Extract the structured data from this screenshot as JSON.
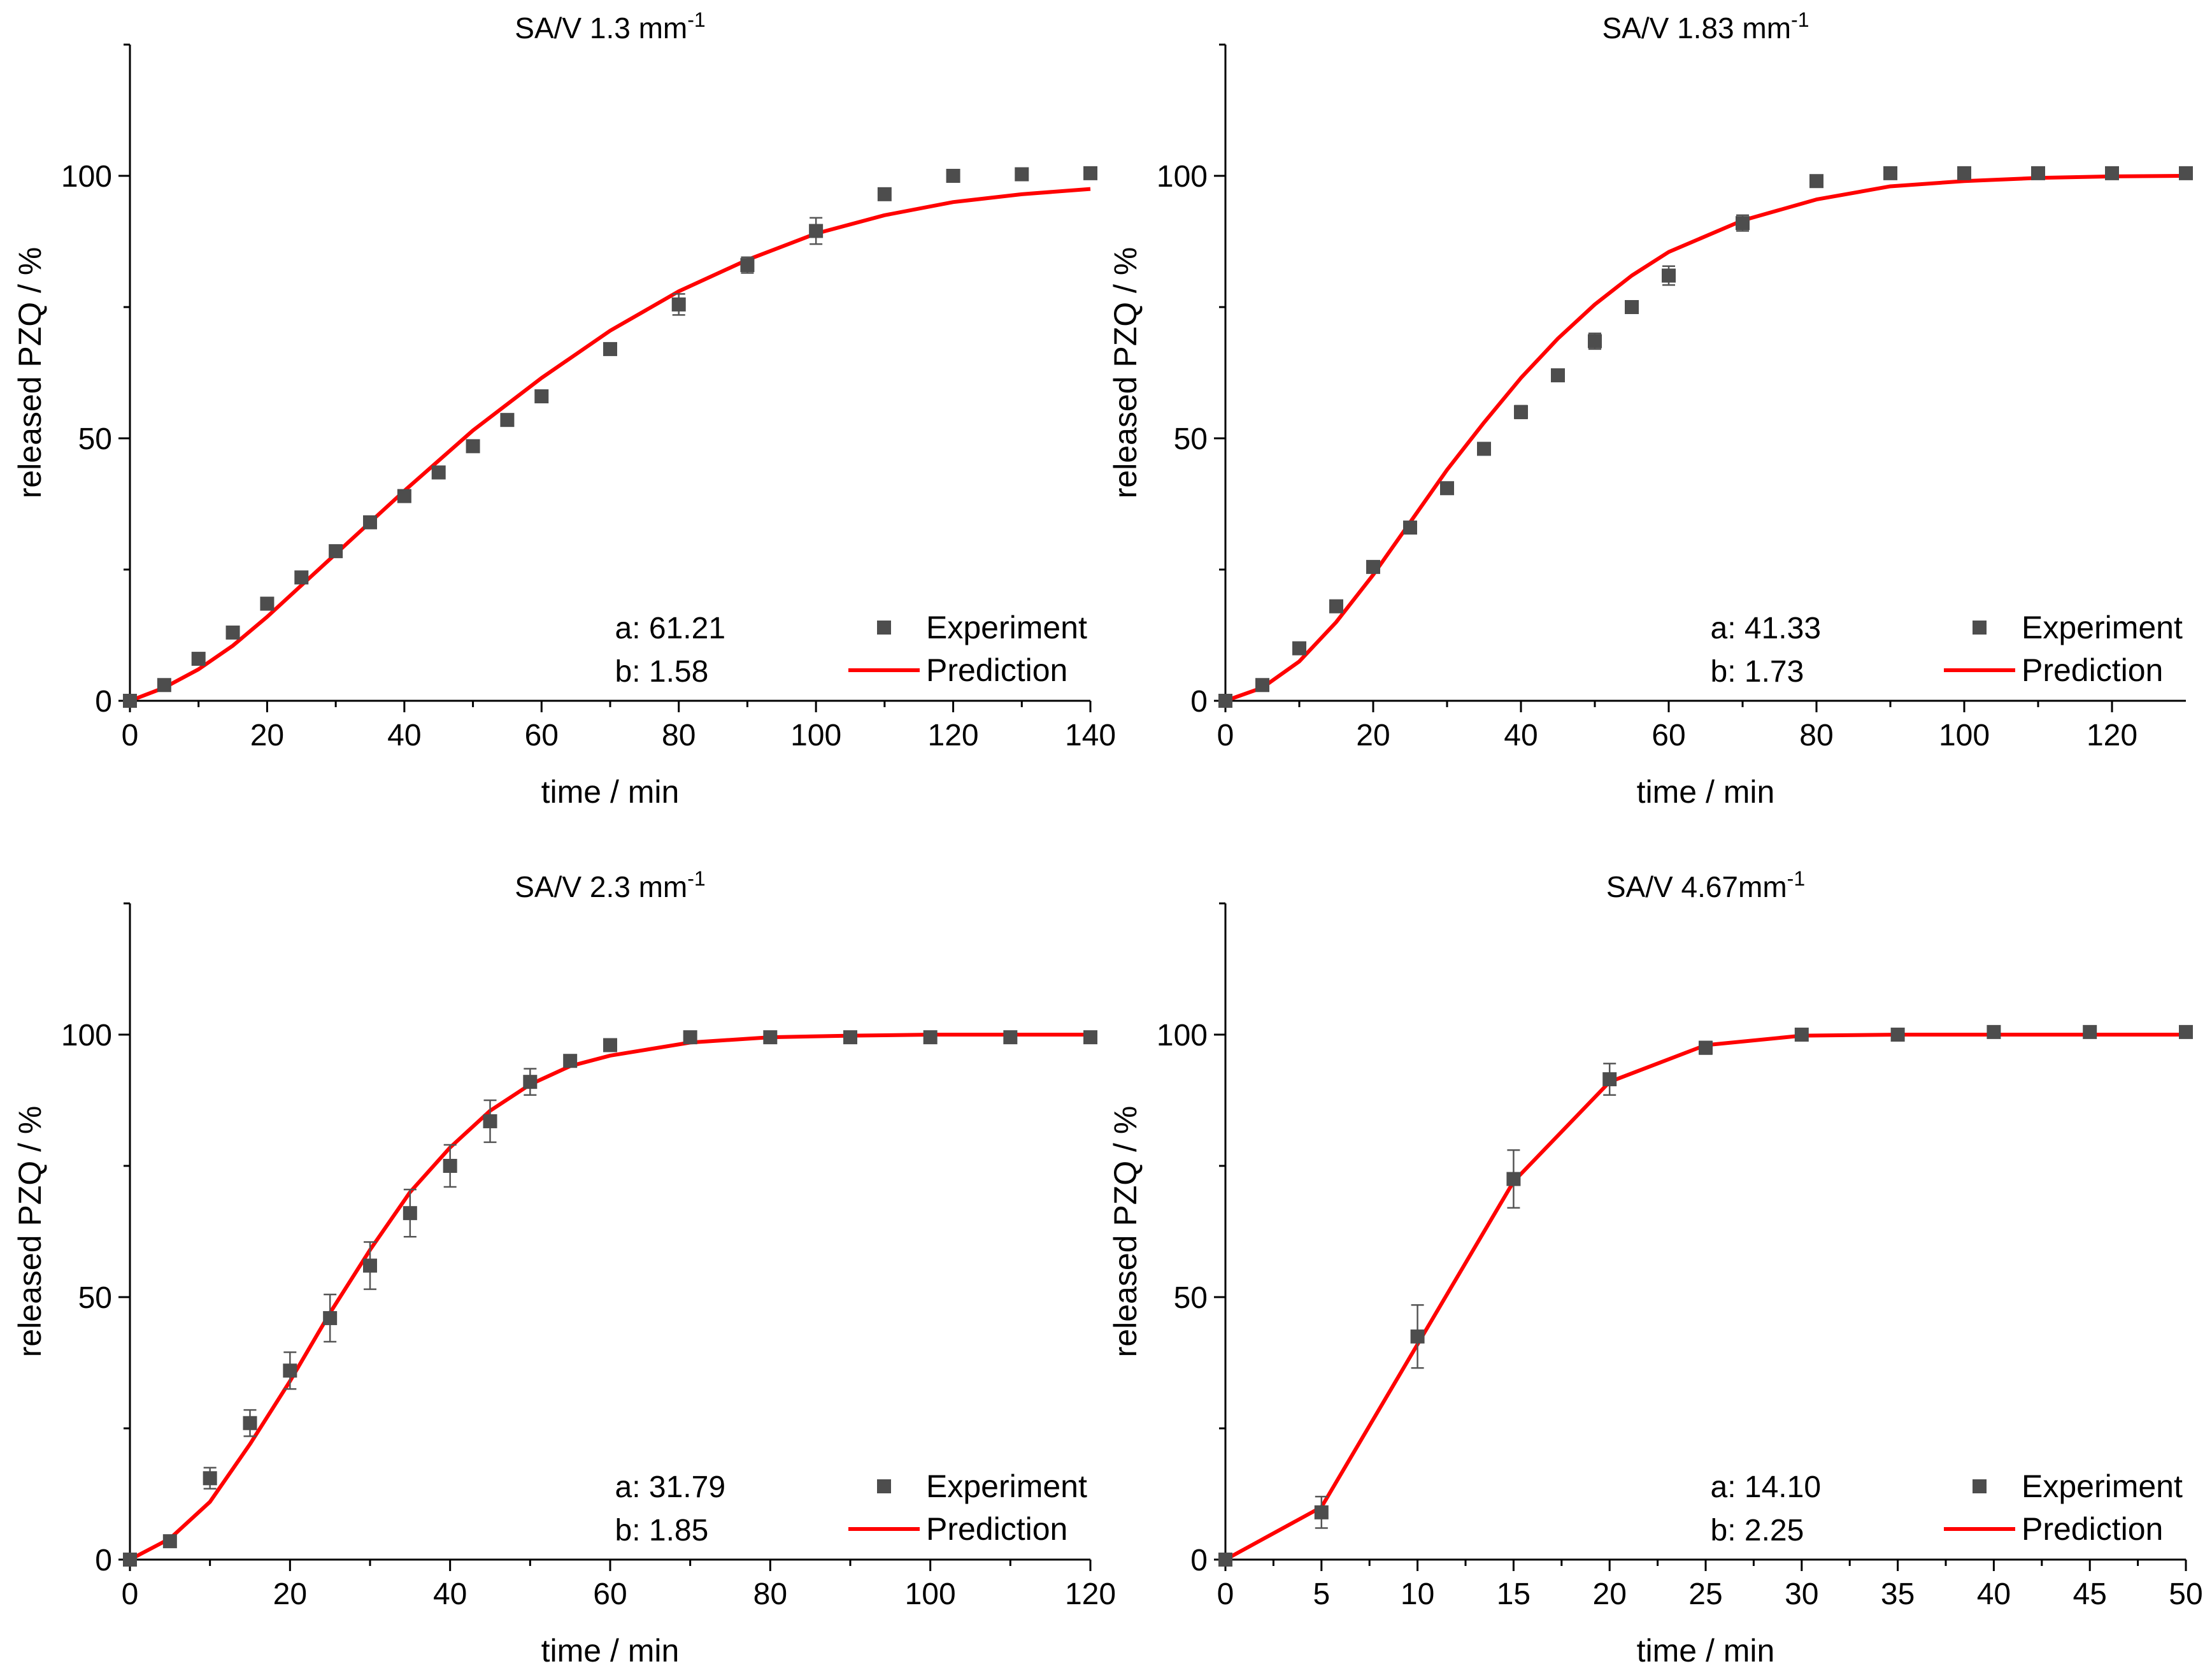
{
  "colors": {
    "experiment": "#4d4d4d",
    "prediction": "#ff0000",
    "axis": "#000000"
  },
  "chart_data": [
    {
      "type": "scatter",
      "title": {
        "main": "SA/V 1.3 mm",
        "sup": "-1"
      },
      "xlabel": "time / min",
      "ylabel": "released PZQ / %",
      "xlim": [
        0,
        140
      ],
      "ylim": [
        0,
        125
      ],
      "xticks": [
        0,
        20,
        40,
        60,
        80,
        100,
        120,
        140
      ],
      "yticks": [
        0,
        50,
        100
      ],
      "legend": {
        "position": "bottom-right",
        "entries": [
          "Experiment",
          "Prediction"
        ]
      },
      "annotation": {
        "a": "a: 61.21",
        "b": "b: 1.58"
      },
      "series": [
        {
          "name": "Experiment",
          "marker": "square",
          "x": [
            0,
            5,
            10,
            15,
            20,
            25,
            30,
            35,
            40,
            45,
            50,
            55,
            60,
            70,
            80,
            90,
            100,
            110,
            120,
            130,
            140
          ],
          "y": [
            0,
            3,
            8,
            13,
            18.5,
            23.5,
            28.5,
            34,
            39,
            43.5,
            48.5,
            53.5,
            58,
            67,
            75.5,
            83,
            89.5,
            96.5,
            100,
            100.3,
            100.5
          ],
          "err": [
            0,
            0.4,
            0.5,
            0.5,
            0.5,
            0.5,
            0.6,
            0.6,
            0.8,
            0.8,
            0.8,
            0.8,
            1,
            1,
            2,
            1.5,
            2.5,
            0.5,
            0.5,
            0.5,
            0.5
          ]
        },
        {
          "name": "Prediction",
          "line": true,
          "x": [
            0,
            5,
            10,
            15,
            20,
            25,
            30,
            35,
            40,
            50,
            60,
            70,
            80,
            90,
            100,
            110,
            120,
            130,
            140
          ],
          "y": [
            0,
            2.5,
            6,
            10.5,
            16,
            22,
            28,
            34,
            40,
            51.5,
            61.5,
            70.5,
            78,
            84,
            89,
            92.5,
            95,
            96.5,
            97.5
          ]
        }
      ]
    },
    {
      "type": "scatter",
      "title": {
        "main": "SA/V 1.83 mm",
        "sup": "-1"
      },
      "xlabel": "time / min",
      "ylabel": "released PZQ / %",
      "xlim": [
        0,
        130
      ],
      "ylim": [
        0,
        125
      ],
      "xticks": [
        0,
        20,
        40,
        60,
        80,
        100,
        120
      ],
      "yticks": [
        0,
        50,
        100
      ],
      "legend": {
        "position": "bottom-right",
        "entries": [
          "Experiment",
          "Prediction"
        ]
      },
      "annotation": {
        "a": "a: 41.33",
        "b": "b: 1.73"
      },
      "series": [
        {
          "name": "Experiment",
          "marker": "square",
          "x": [
            0,
            5,
            10,
            15,
            20,
            25,
            30,
            35,
            40,
            45,
            50,
            55,
            60,
            70,
            80,
            90,
            100,
            110,
            120,
            130
          ],
          "y": [
            0,
            3,
            10,
            18,
            25.5,
            33,
            40.5,
            48,
            55,
            62,
            68.5,
            75,
            81,
            91,
            99,
            100.5,
            100.5,
            100.5,
            100.5,
            100.5
          ],
          "err": [
            0,
            0.4,
            0.5,
            0.5,
            0.6,
            0.8,
            0.6,
            0.6,
            1.2,
            0.6,
            1.5,
            0.6,
            1.8,
            1.5,
            0.5,
            0.5,
            0.5,
            0.5,
            0.5,
            0.5
          ]
        },
        {
          "name": "Prediction",
          "line": true,
          "x": [
            0,
            5,
            10,
            15,
            20,
            25,
            30,
            35,
            40,
            45,
            50,
            55,
            60,
            70,
            80,
            90,
            100,
            110,
            120,
            130
          ],
          "y": [
            0,
            2.5,
            7.5,
            15,
            24,
            34,
            44,
            53,
            61.5,
            69,
            75.5,
            81,
            85.5,
            91.5,
            95.5,
            98,
            99,
            99.6,
            99.9,
            100
          ]
        }
      ]
    },
    {
      "type": "scatter",
      "title": {
        "main": "SA/V 2.3 mm",
        "sup": "-1"
      },
      "xlabel": "time / min",
      "ylabel": "released PZQ / %",
      "xlim": [
        0,
        120
      ],
      "ylim": [
        0,
        125
      ],
      "xticks": [
        0,
        20,
        40,
        60,
        80,
        100,
        120
      ],
      "yticks": [
        0,
        50,
        100
      ],
      "legend": {
        "position": "bottom-right",
        "entries": [
          "Experiment",
          "Prediction"
        ]
      },
      "annotation": {
        "a": "a: 31.79",
        "b": "b: 1.85"
      },
      "series": [
        {
          "name": "Experiment",
          "marker": "square",
          "x": [
            0,
            5,
            10,
            15,
            20,
            25,
            30,
            35,
            40,
            45,
            50,
            55,
            60,
            70,
            80,
            90,
            100,
            110,
            120
          ],
          "y": [
            0,
            3.5,
            15.5,
            26,
            36,
            46,
            56,
            66,
            75,
            83.5,
            91,
            95,
            98,
            99.5,
            99.5,
            99.5,
            99.5,
            99.5,
            99.5
          ],
          "err": [
            0,
            0.8,
            2,
            2.5,
            3.5,
            4.5,
            4.5,
            4.5,
            4,
            4,
            2.5,
            1,
            0.8,
            0.5,
            0.5,
            0.5,
            0.5,
            0.5,
            0.5
          ]
        },
        {
          "name": "Prediction",
          "line": true,
          "x": [
            0,
            5,
            10,
            15,
            20,
            25,
            30,
            35,
            40,
            45,
            50,
            55,
            60,
            70,
            80,
            90,
            100,
            110,
            120
          ],
          "y": [
            0,
            4,
            11,
            22,
            34,
            47,
            59,
            70,
            78.5,
            85.5,
            90.5,
            94,
            96,
            98.5,
            99.5,
            99.8,
            100,
            100,
            100
          ]
        }
      ]
    },
    {
      "type": "scatter",
      "title": {
        "main": "SA/V 4.67mm",
        "sup": "-1"
      },
      "xlabel": "time / min",
      "ylabel": "released PZQ / %",
      "xlim": [
        0,
        50
      ],
      "ylim": [
        0,
        125
      ],
      "xticks": [
        0,
        5,
        10,
        15,
        20,
        25,
        30,
        35,
        40,
        45,
        50
      ],
      "yticks": [
        0,
        50,
        100
      ],
      "legend": {
        "position": "bottom-right",
        "entries": [
          "Experiment",
          "Prediction"
        ]
      },
      "annotation": {
        "a": "a: 14.10",
        "b": "b: 2.25"
      },
      "series": [
        {
          "name": "Experiment",
          "marker": "square",
          "x": [
            0,
            5,
            10,
            15,
            20,
            25,
            30,
            35,
            40,
            45,
            50
          ],
          "y": [
            0,
            9,
            42.5,
            72.5,
            91.5,
            97.5,
            100,
            100,
            100.5,
            100.5,
            100.5
          ],
          "err": [
            0,
            3,
            6,
            5.5,
            3,
            1.2,
            0.6,
            0.5,
            0.5,
            0.5,
            0.5
          ]
        },
        {
          "name": "Prediction",
          "line": true,
          "x": [
            0,
            2,
            5,
            10,
            15,
            20,
            25,
            30,
            35,
            40,
            45,
            50
          ],
          "y": [
            0,
            4,
            10,
            41,
            72,
            91,
            98,
            99.8,
            100,
            100,
            100,
            100
          ]
        }
      ]
    }
  ]
}
